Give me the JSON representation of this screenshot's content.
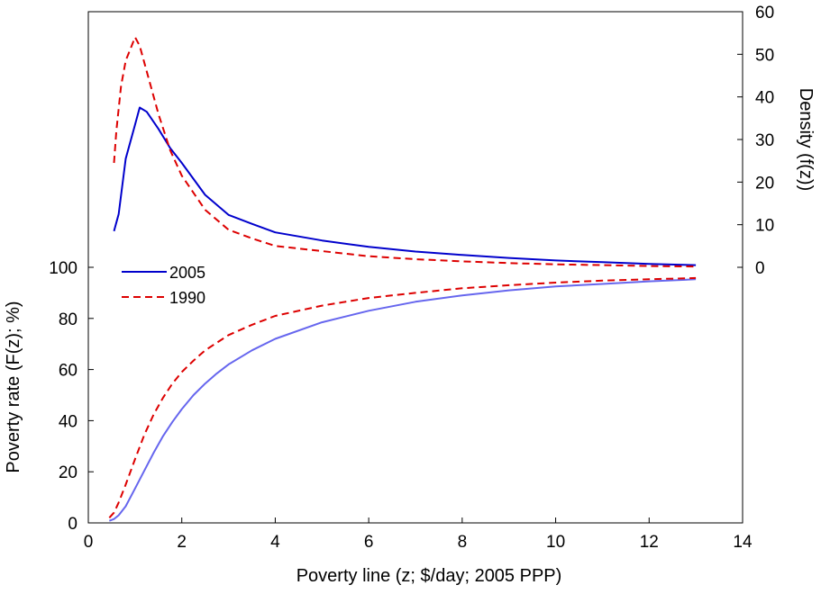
{
  "chart_data": {
    "type": "line",
    "title": "",
    "xlabel": "Poverty line (z; $/day; 2005 PPP)",
    "ylabel_left": "Poverty rate (F(z); %)",
    "ylabel_right": "Density (f(z))",
    "xlim": [
      0,
      14
    ],
    "ylim_left": [
      0,
      100
    ],
    "ylim_right": [
      0,
      60
    ],
    "xticks": [
      "0",
      "2",
      "4",
      "6",
      "8",
      "10",
      "12",
      "14"
    ],
    "yticks_left": [
      "0",
      "20",
      "40",
      "60",
      "80",
      "100"
    ],
    "yticks_right": [
      "0",
      "10",
      "20",
      "30",
      "40",
      "50",
      "60"
    ],
    "grid": false,
    "legend_position": "left-middle",
    "legend": [
      {
        "label": "2005",
        "color": "#0000cc",
        "dash": "solid"
      },
      {
        "label": "1990",
        "color": "#dd0000",
        "dash": "dashed"
      }
    ],
    "series": [
      {
        "name": "2005",
        "kind": "density",
        "axis": "right",
        "color": "#0000cc",
        "dash": "solid",
        "x": [
          0.55,
          0.65,
          0.8,
          1.0,
          1.1,
          1.25,
          1.5,
          1.75,
          2.0,
          2.5,
          3.0,
          3.5,
          4.0,
          5.0,
          6.0,
          7.0,
          8.0,
          9.0,
          10.0,
          11.0,
          12.0,
          13.0
        ],
        "y": [
          8.5,
          12.5,
          25.5,
          33.5,
          37.5,
          36.5,
          32.5,
          28.0,
          24.5,
          17.0,
          12.3,
          10.2,
          8.2,
          6.3,
          4.8,
          3.7,
          2.9,
          2.2,
          1.6,
          1.2,
          0.8,
          0.5
        ]
      },
      {
        "name": "1990",
        "kind": "density",
        "axis": "right",
        "color": "#dd0000",
        "dash": "dashed",
        "x": [
          0.55,
          0.6,
          0.7,
          0.8,
          1.0,
          1.1,
          1.25,
          1.5,
          1.75,
          2.0,
          2.5,
          3.0,
          3.5,
          4.0,
          5.0,
          6.0,
          7.0,
          8.0,
          9.0,
          10.0,
          11.0,
          12.0,
          13.0
        ],
        "y": [
          24.5,
          32.0,
          42.5,
          48.5,
          54.0,
          52.0,
          46.0,
          36.0,
          27.5,
          21.5,
          13.5,
          8.8,
          6.8,
          5.0,
          3.8,
          2.6,
          1.9,
          1.4,
          1.0,
          0.7,
          0.5,
          0.3,
          0.2
        ]
      },
      {
        "name": "2005",
        "kind": "cdf",
        "axis": "left",
        "color": "#6666ee",
        "dash": "solid",
        "x": [
          0.45,
          0.55,
          0.65,
          0.8,
          1.0,
          1.2,
          1.4,
          1.6,
          1.8,
          2.0,
          2.25,
          2.5,
          2.75,
          3.0,
          3.5,
          4.0,
          5.0,
          6.0,
          7.0,
          8.0,
          9.0,
          10.0,
          11.0,
          12.0,
          13.0
        ],
        "y": [
          0.8,
          1.5,
          3.0,
          6.5,
          13.5,
          20.5,
          27.5,
          34.0,
          39.5,
          44.5,
          50.0,
          54.5,
          58.5,
          62.0,
          67.5,
          72.0,
          78.5,
          83.0,
          86.5,
          89.0,
          91.0,
          92.5,
          93.5,
          94.5,
          95.3
        ]
      },
      {
        "name": "1990",
        "kind": "cdf",
        "axis": "left",
        "color": "#dd0000",
        "dash": "dashed",
        "x": [
          0.45,
          0.55,
          0.65,
          0.8,
          1.0,
          1.2,
          1.4,
          1.6,
          1.8,
          2.0,
          2.25,
          2.5,
          2.75,
          3.0,
          3.5,
          4.0,
          5.0,
          6.0,
          7.0,
          8.0,
          9.0,
          10.0,
          11.0,
          12.0,
          13.0
        ],
        "y": [
          2.0,
          4.0,
          8.0,
          15.0,
          25.0,
          34.5,
          42.5,
          49.0,
          54.5,
          59.0,
          63.5,
          67.5,
          70.5,
          73.5,
          77.5,
          81.0,
          85.0,
          88.0,
          90.0,
          91.8,
          93.0,
          94.0,
          94.8,
          95.3,
          95.8
        ]
      }
    ]
  }
}
